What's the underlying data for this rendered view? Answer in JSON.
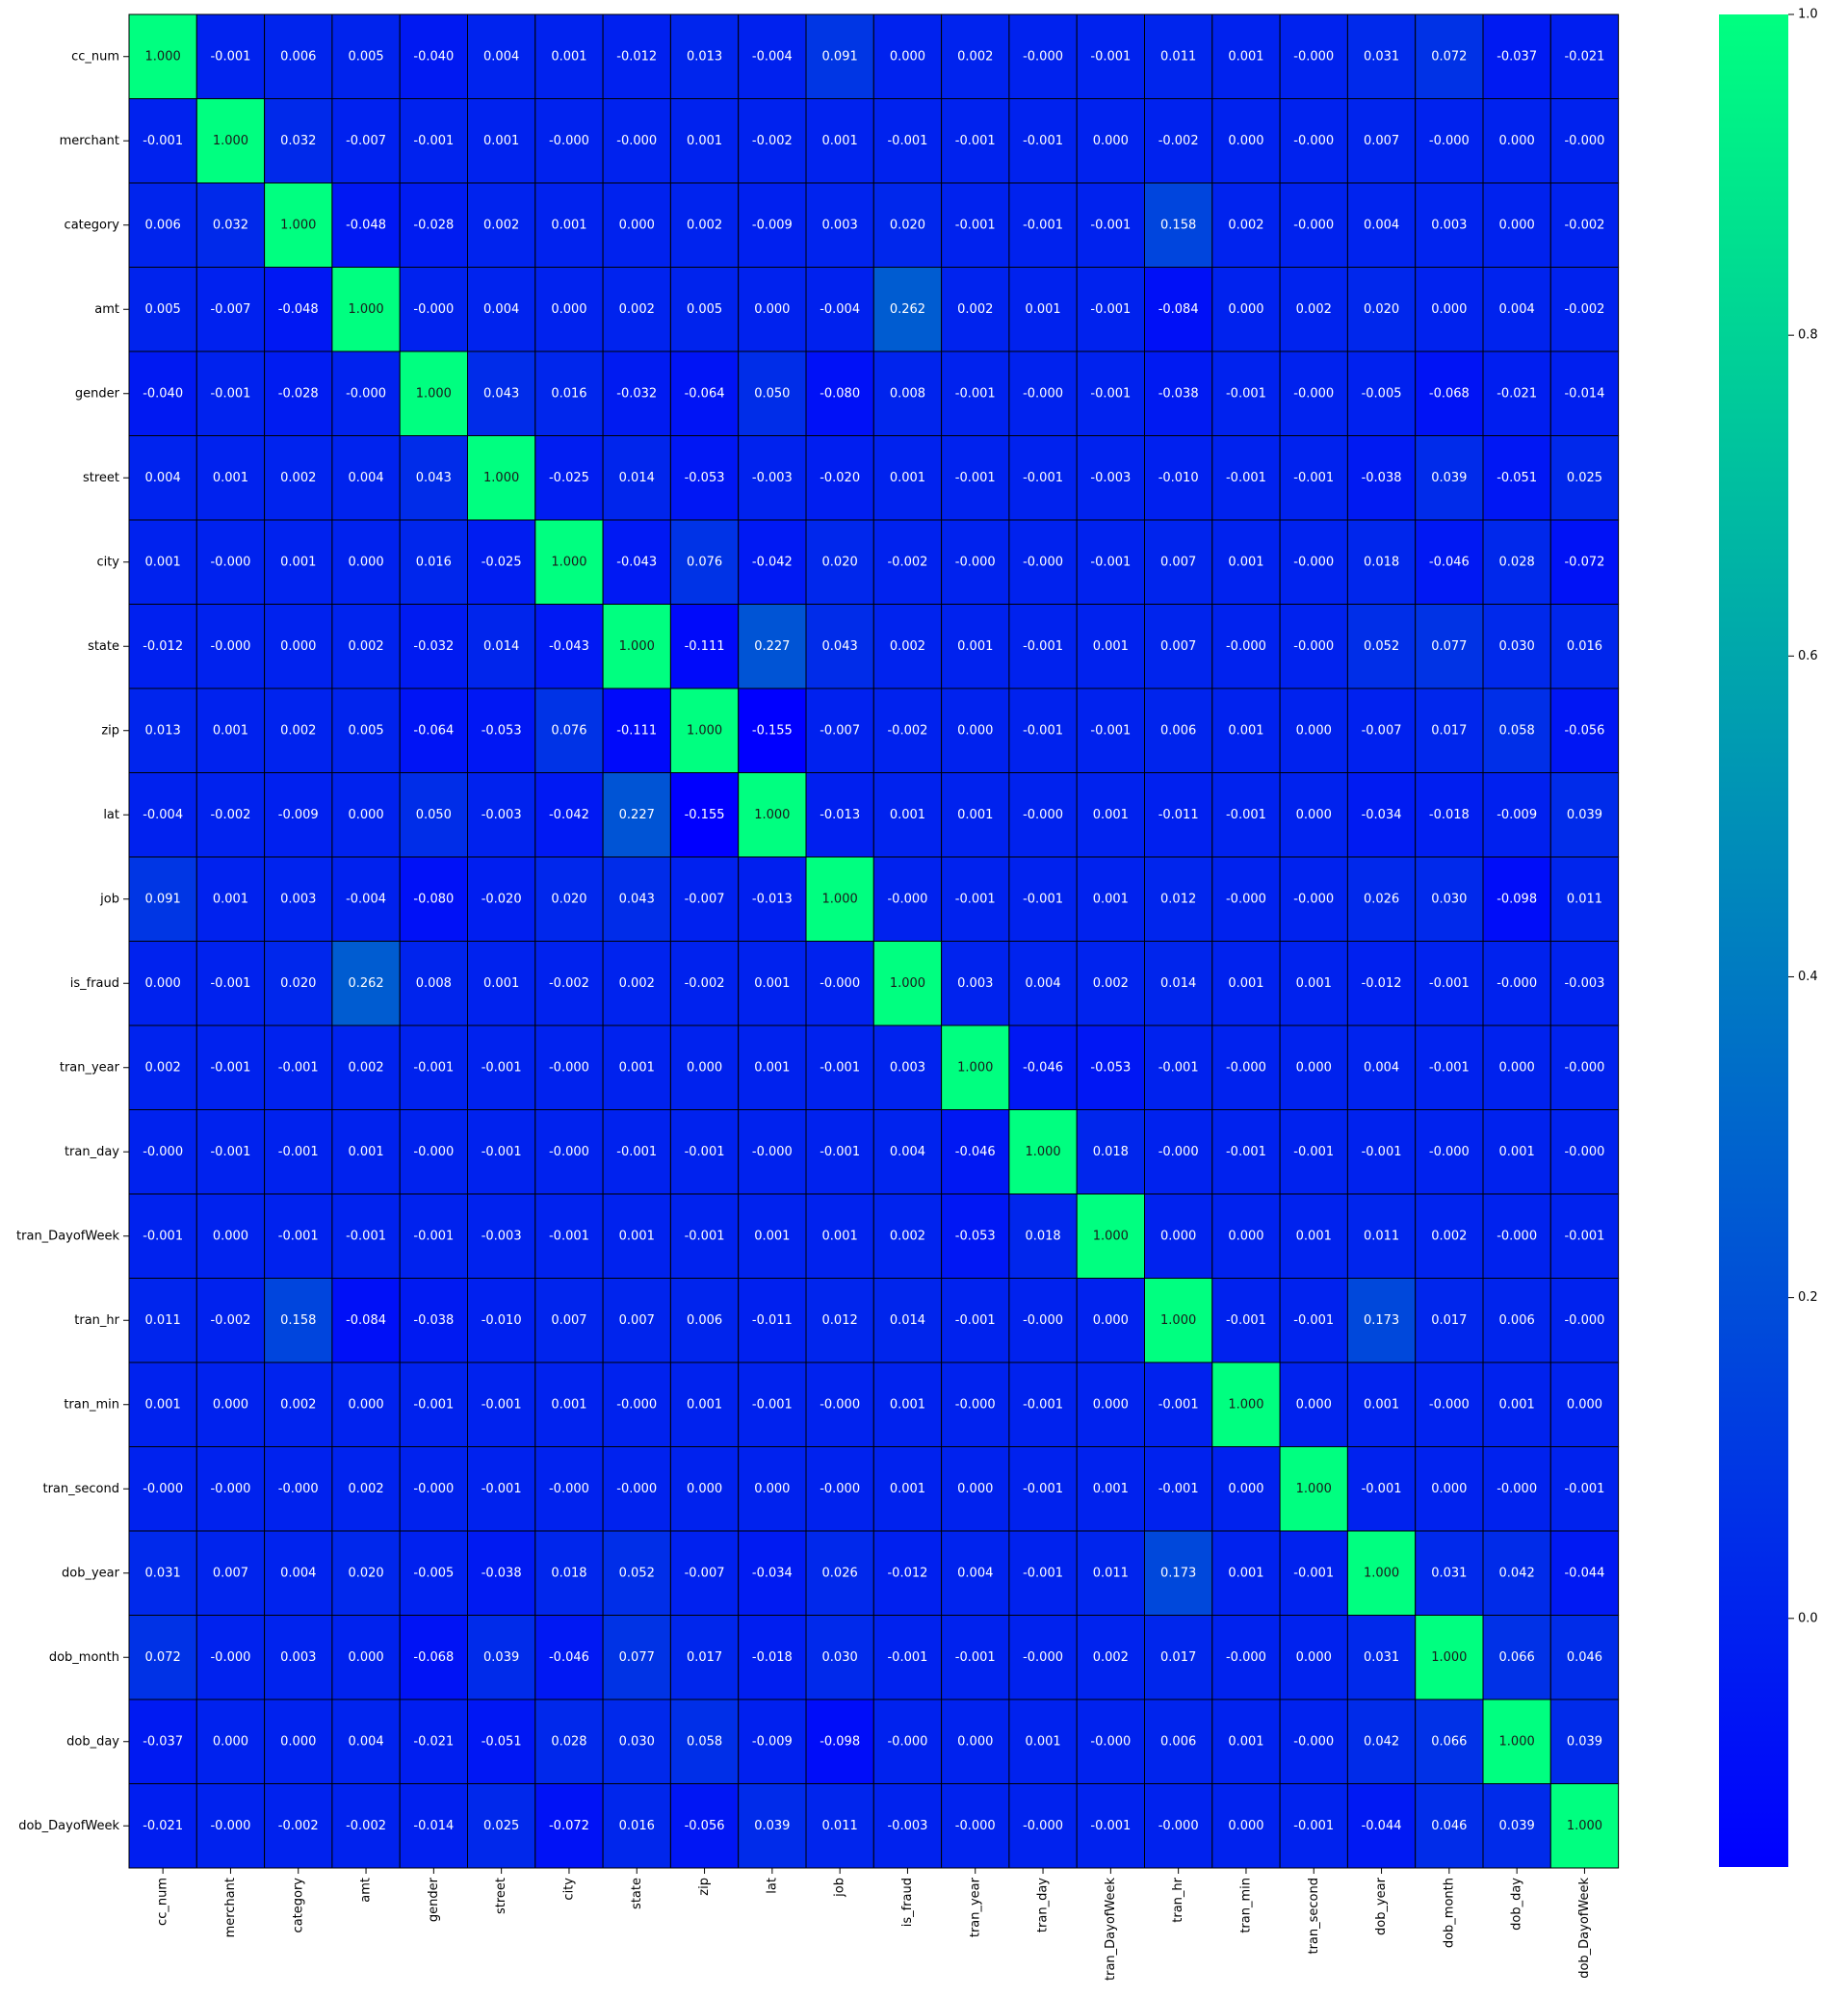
{
  "chart_data": {
    "type": "heatmap",
    "title": "",
    "xlabel": "",
    "ylabel": "",
    "value_format": "3 decimals",
    "colormap": {
      "low": "#0000ff",
      "high": "#00ff80",
      "name": "winter"
    },
    "vmin": -0.155,
    "vmax": 1.0,
    "colorbar_ticks": [
      "0.0",
      "0.2",
      "0.4",
      "0.6",
      "0.8",
      "1.0"
    ],
    "colorbar_tick_values": [
      0.0,
      0.2,
      0.4,
      0.6,
      0.8,
      1.0
    ],
    "labels": [
      "cc_num",
      "merchant",
      "category",
      "amt",
      "gender",
      "street",
      "city",
      "state",
      "zip",
      "lat",
      "job",
      "is_fraud",
      "tran_year",
      "tran_day",
      "tran_DayofWeek",
      "tran_hr",
      "tran_min",
      "tran_second",
      "dob_year",
      "dob_month",
      "dob_day",
      "dob_DayofWeek"
    ],
    "matrix": [
      [
        "1.000",
        "-0.001",
        "0.006",
        "0.005",
        "-0.040",
        "0.004",
        "0.001",
        "-0.012",
        "0.013",
        "-0.004",
        "0.091",
        "0.000",
        "0.002",
        "-0.000",
        "-0.001",
        "0.011",
        "0.001",
        "-0.000",
        "0.031",
        "0.072",
        "-0.037",
        "-0.021"
      ],
      [
        "-0.001",
        "1.000",
        "0.032",
        "-0.007",
        "-0.001",
        "0.001",
        "-0.000",
        "-0.000",
        "0.001",
        "-0.002",
        "0.001",
        "-0.001",
        "-0.001",
        "-0.001",
        "0.000",
        "-0.002",
        "0.000",
        "-0.000",
        "0.007",
        "-0.000",
        "0.000",
        "-0.000"
      ],
      [
        "0.006",
        "0.032",
        "1.000",
        "-0.048",
        "-0.028",
        "0.002",
        "0.001",
        "0.000",
        "0.002",
        "-0.009",
        "0.003",
        "0.020",
        "-0.001",
        "-0.001",
        "-0.001",
        "0.158",
        "0.002",
        "-0.000",
        "0.004",
        "0.003",
        "0.000",
        "-0.002"
      ],
      [
        "0.005",
        "-0.007",
        "-0.048",
        "1.000",
        "-0.000",
        "0.004",
        "0.000",
        "0.002",
        "0.005",
        "0.000",
        "-0.004",
        "0.262",
        "0.002",
        "0.001",
        "-0.001",
        "-0.084",
        "0.000",
        "0.002",
        "0.020",
        "0.000",
        "0.004",
        "-0.002"
      ],
      [
        "-0.040",
        "-0.001",
        "-0.028",
        "-0.000",
        "1.000",
        "0.043",
        "0.016",
        "-0.032",
        "-0.064",
        "0.050",
        "-0.080",
        "0.008",
        "-0.001",
        "-0.000",
        "-0.001",
        "-0.038",
        "-0.001",
        "-0.000",
        "-0.005",
        "-0.068",
        "-0.021",
        "-0.014"
      ],
      [
        "0.004",
        "0.001",
        "0.002",
        "0.004",
        "0.043",
        "1.000",
        "-0.025",
        "0.014",
        "-0.053",
        "-0.003",
        "-0.020",
        "0.001",
        "-0.001",
        "-0.001",
        "-0.003",
        "-0.010",
        "-0.001",
        "-0.001",
        "-0.038",
        "0.039",
        "-0.051",
        "0.025"
      ],
      [
        "0.001",
        "-0.000",
        "0.001",
        "0.000",
        "0.016",
        "-0.025",
        "1.000",
        "-0.043",
        "0.076",
        "-0.042",
        "0.020",
        "-0.002",
        "-0.000",
        "-0.000",
        "-0.001",
        "0.007",
        "0.001",
        "-0.000",
        "0.018",
        "-0.046",
        "0.028",
        "-0.072"
      ],
      [
        "-0.012",
        "-0.000",
        "0.000",
        "0.002",
        "-0.032",
        "0.014",
        "-0.043",
        "1.000",
        "-0.111",
        "0.227",
        "0.043",
        "0.002",
        "0.001",
        "-0.001",
        "0.001",
        "0.007",
        "-0.000",
        "-0.000",
        "0.052",
        "0.077",
        "0.030",
        "0.016"
      ],
      [
        "0.013",
        "0.001",
        "0.002",
        "0.005",
        "-0.064",
        "-0.053",
        "0.076",
        "-0.111",
        "1.000",
        "-0.155",
        "-0.007",
        "-0.002",
        "0.000",
        "-0.001",
        "-0.001",
        "0.006",
        "0.001",
        "0.000",
        "-0.007",
        "0.017",
        "0.058",
        "-0.056"
      ],
      [
        "-0.004",
        "-0.002",
        "-0.009",
        "0.000",
        "0.050",
        "-0.003",
        "-0.042",
        "0.227",
        "-0.155",
        "1.000",
        "-0.013",
        "0.001",
        "0.001",
        "-0.000",
        "0.001",
        "-0.011",
        "-0.001",
        "0.000",
        "-0.034",
        "-0.018",
        "-0.009",
        "0.039"
      ],
      [
        "0.091",
        "0.001",
        "0.003",
        "-0.004",
        "-0.080",
        "-0.020",
        "0.020",
        "0.043",
        "-0.007",
        "-0.013",
        "1.000",
        "-0.000",
        "-0.001",
        "-0.001",
        "0.001",
        "0.012",
        "-0.000",
        "-0.000",
        "0.026",
        "0.030",
        "-0.098",
        "0.011"
      ],
      [
        "0.000",
        "-0.001",
        "0.020",
        "0.262",
        "0.008",
        "0.001",
        "-0.002",
        "0.002",
        "-0.002",
        "0.001",
        "-0.000",
        "1.000",
        "0.003",
        "0.004",
        "0.002",
        "0.014",
        "0.001",
        "0.001",
        "-0.012",
        "-0.001",
        "-0.000",
        "-0.003"
      ],
      [
        "0.002",
        "-0.001",
        "-0.001",
        "0.002",
        "-0.001",
        "-0.001",
        "-0.000",
        "0.001",
        "0.000",
        "0.001",
        "-0.001",
        "0.003",
        "1.000",
        "-0.046",
        "-0.053",
        "-0.001",
        "-0.000",
        "0.000",
        "0.004",
        "-0.001",
        "0.000",
        "-0.000"
      ],
      [
        "-0.000",
        "-0.001",
        "-0.001",
        "0.001",
        "-0.000",
        "-0.001",
        "-0.000",
        "-0.001",
        "-0.001",
        "-0.000",
        "-0.001",
        "0.004",
        "-0.046",
        "1.000",
        "0.018",
        "-0.000",
        "-0.001",
        "-0.001",
        "-0.001",
        "-0.000",
        "0.001",
        "-0.000"
      ],
      [
        "-0.001",
        "0.000",
        "-0.001",
        "-0.001",
        "-0.001",
        "-0.003",
        "-0.001",
        "0.001",
        "-0.001",
        "0.001",
        "0.001",
        "0.002",
        "-0.053",
        "0.018",
        "1.000",
        "0.000",
        "0.000",
        "0.001",
        "0.011",
        "0.002",
        "-0.000",
        "-0.001"
      ],
      [
        "0.011",
        "-0.002",
        "0.158",
        "-0.084",
        "-0.038",
        "-0.010",
        "0.007",
        "0.007",
        "0.006",
        "-0.011",
        "0.012",
        "0.014",
        "-0.001",
        "-0.000",
        "0.000",
        "1.000",
        "-0.001",
        "-0.001",
        "0.173",
        "0.017",
        "0.006",
        "-0.000"
      ],
      [
        "0.001",
        "0.000",
        "0.002",
        "0.000",
        "-0.001",
        "-0.001",
        "0.001",
        "-0.000",
        "0.001",
        "-0.001",
        "-0.000",
        "0.001",
        "-0.000",
        "-0.001",
        "0.000",
        "-0.001",
        "1.000",
        "0.000",
        "0.001",
        "-0.000",
        "0.001",
        "0.000"
      ],
      [
        "-0.000",
        "-0.000",
        "-0.000",
        "0.002",
        "-0.000",
        "-0.001",
        "-0.000",
        "-0.000",
        "0.000",
        "0.000",
        "-0.000",
        "0.001",
        "0.000",
        "-0.001",
        "0.001",
        "-0.001",
        "0.000",
        "1.000",
        "-0.001",
        "0.000",
        "-0.000",
        "-0.001"
      ],
      [
        "0.031",
        "0.007",
        "0.004",
        "0.020",
        "-0.005",
        "-0.038",
        "0.018",
        "0.052",
        "-0.007",
        "-0.034",
        "0.026",
        "-0.012",
        "0.004",
        "-0.001",
        "0.011",
        "0.173",
        "0.001",
        "-0.001",
        "1.000",
        "0.031",
        "0.042",
        "-0.044"
      ],
      [
        "0.072",
        "-0.000",
        "0.003",
        "0.000",
        "-0.068",
        "0.039",
        "-0.046",
        "0.077",
        "0.017",
        "-0.018",
        "0.030",
        "-0.001",
        "-0.001",
        "-0.000",
        "0.002",
        "0.017",
        "-0.000",
        "0.000",
        "0.031",
        "1.000",
        "0.066",
        "0.046"
      ],
      [
        "-0.037",
        "0.000",
        "0.000",
        "0.004",
        "-0.021",
        "-0.051",
        "0.028",
        "0.030",
        "0.058",
        "-0.009",
        "-0.098",
        "-0.000",
        "0.000",
        "0.001",
        "-0.000",
        "0.006",
        "0.001",
        "-0.000",
        "0.042",
        "0.066",
        "1.000",
        "0.039"
      ],
      [
        "-0.021",
        "-0.000",
        "-0.002",
        "-0.002",
        "-0.014",
        "0.025",
        "-0.072",
        "0.016",
        "-0.056",
        "0.039",
        "0.011",
        "-0.003",
        "-0.000",
        "-0.000",
        "-0.001",
        "-0.000",
        "0.000",
        "-0.001",
        "-0.044",
        "0.046",
        "0.039",
        "1.000"
      ]
    ]
  }
}
